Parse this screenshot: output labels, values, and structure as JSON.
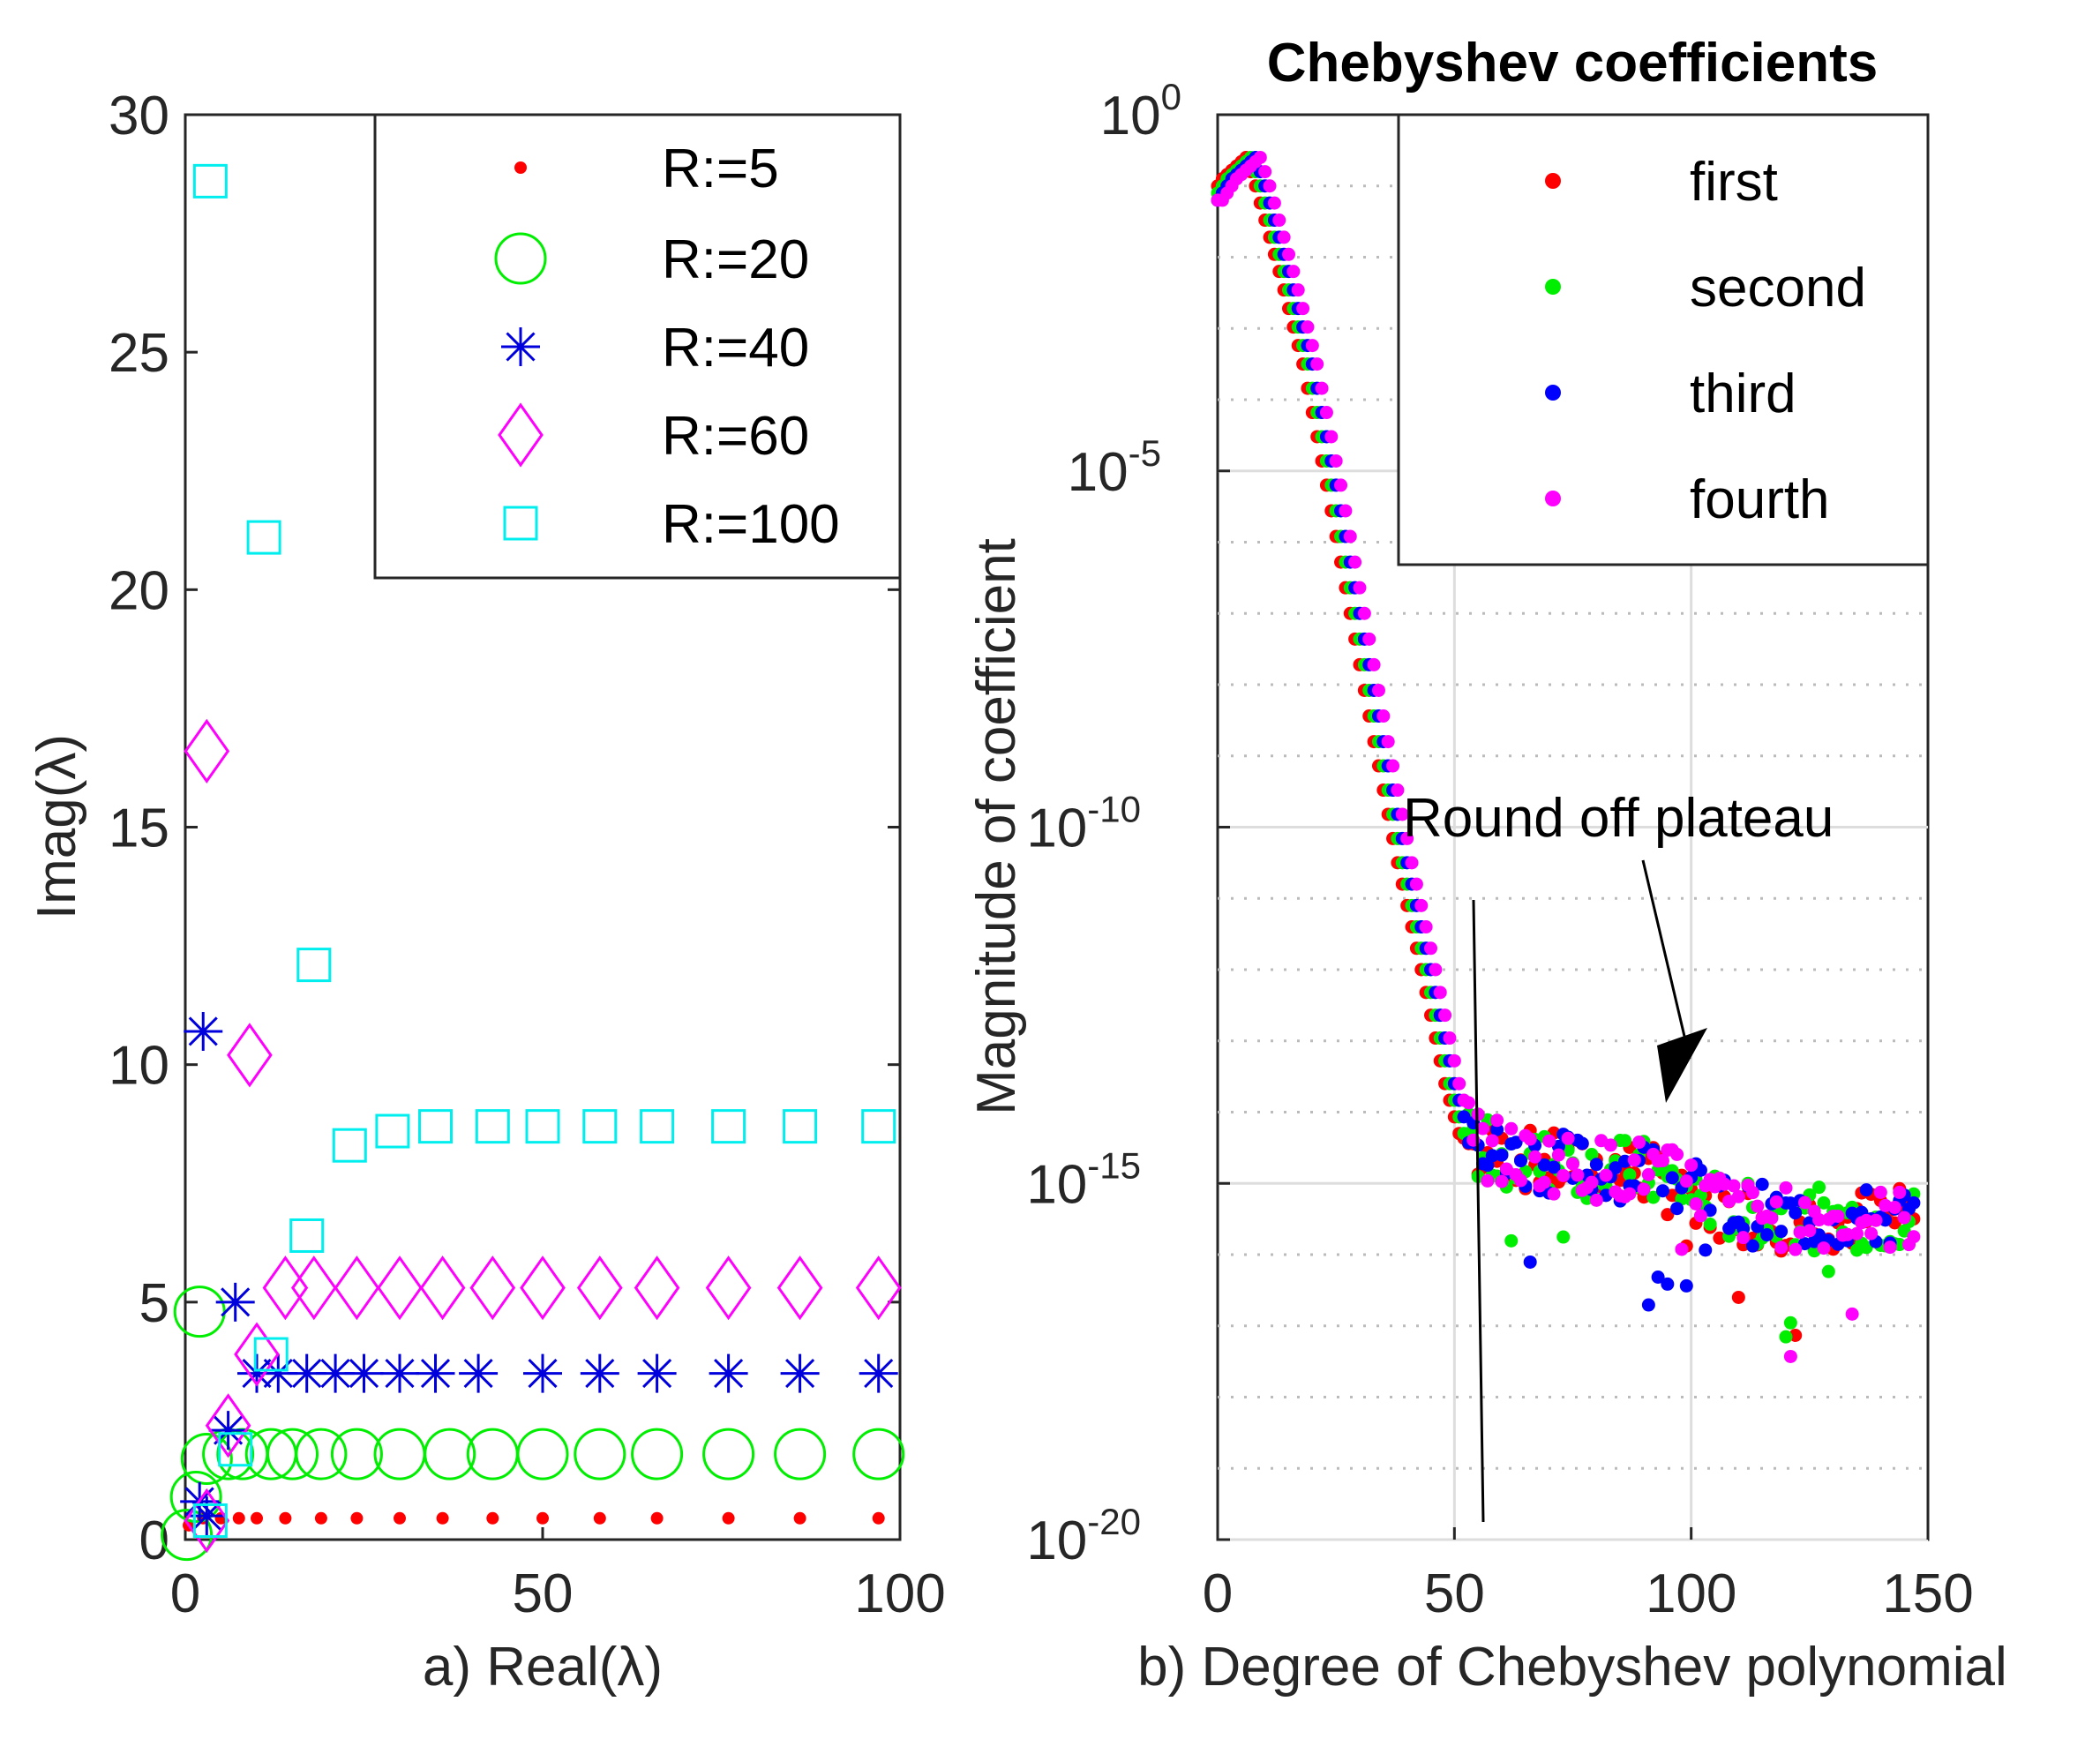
{
  "chart_data": [
    {
      "type": "scatter",
      "title": "",
      "xlabel": "a) Real(λ)",
      "ylabel": "Imag(λ)",
      "xlim": [
        0,
        100
      ],
      "ylim": [
        0,
        30
      ],
      "xticks": [
        "0",
        "50",
        "100"
      ],
      "yticks": [
        "0",
        "5",
        "10",
        "15",
        "20",
        "25",
        "30"
      ],
      "legend_position": "top-right",
      "series": [
        {
          "name": "R:=5",
          "color": "#ff0000",
          "marker": "dot",
          "x": [
            0.5,
            2.5,
            5,
            7.5,
            10,
            14,
            19,
            24,
            30,
            36,
            43,
            50,
            58,
            66,
            76,
            86,
            97
          ],
          "y": [
            0.3,
            0.45,
            0.45,
            0.45,
            0.45,
            0.45,
            0.45,
            0.45,
            0.45,
            0.45,
            0.45,
            0.45,
            0.45,
            0.45,
            0.45,
            0.45,
            0.45
          ]
        },
        {
          "name": "R:=20",
          "color": "#00ee00",
          "marker": "circle",
          "x": [
            0.2,
            1.5,
            2,
            3,
            6,
            8,
            12,
            15,
            19,
            24,
            30,
            37,
            43,
            50,
            58,
            66,
            76,
            86,
            97
          ],
          "y": [
            0.1,
            0.9,
            4.8,
            1.7,
            1.8,
            1.8,
            1.8,
            1.8,
            1.8,
            1.8,
            1.8,
            1.8,
            1.8,
            1.8,
            1.8,
            1.8,
            1.8,
            1.8,
            1.8
          ]
        },
        {
          "name": "R:=40",
          "color": "#0000dd",
          "marker": "asterisk",
          "x": [
            2,
            2.5,
            3,
            6,
            7,
            10,
            13,
            17,
            21,
            25,
            30,
            35,
            41,
            50,
            58,
            66,
            76,
            86,
            97
          ],
          "y": [
            0.8,
            10.7,
            0.5,
            2.3,
            5,
            3.5,
            3.5,
            3.5,
            3.5,
            3.5,
            3.5,
            3.5,
            3.5,
            3.5,
            3.5,
            3.5,
            3.5,
            3.5,
            3.5
          ]
        },
        {
          "name": "R:=60",
          "color": "#ff00ff",
          "marker": "diamond",
          "x": [
            3,
            3,
            6,
            9,
            10,
            14,
            18,
            24,
            30,
            36,
            43,
            50,
            58,
            66,
            76,
            86,
            97
          ],
          "y": [
            0.4,
            16.6,
            2.4,
            10.2,
            3.9,
            5.3,
            5.3,
            5.3,
            5.3,
            5.3,
            5.3,
            5.3,
            5.3,
            5.3,
            5.3,
            5.3,
            5.3
          ]
        },
        {
          "name": "R:=100",
          "color": "#00eeee",
          "marker": "square",
          "x": [
            3.5,
            3.5,
            7,
            11,
            12,
            17,
            18,
            23,
            29,
            35,
            43,
            50,
            58,
            66,
            76,
            86,
            97
          ],
          "y": [
            0.4,
            28.6,
            1.9,
            21.1,
            3.9,
            6.4,
            12.1,
            8.3,
            8.6,
            8.7,
            8.7,
            8.7,
            8.7,
            8.7,
            8.7,
            8.7,
            8.7
          ]
        }
      ]
    },
    {
      "type": "scatter",
      "title": "Chebyshev coefficients",
      "xlabel": "b) Degree of Chebyshev polynomial",
      "ylabel": "Magnitude of coefficient",
      "xlim": [
        0,
        150
      ],
      "yscale": "log",
      "ylim_log10": [
        -20,
        0
      ],
      "xticks": [
        "0",
        "50",
        "100",
        "150"
      ],
      "yticks": [
        {
          "base": "10",
          "exp": "-20"
        },
        {
          "base": "10",
          "exp": "-15"
        },
        {
          "base": "10",
          "exp": "-10"
        },
        {
          "base": "10",
          "exp": "-5"
        },
        {
          "base": "10",
          "exp": "0"
        }
      ],
      "grid": true,
      "legend_position": "top-right",
      "annotation": {
        "text": "Round off plateau",
        "points_to_x": 100,
        "points_to_log10y": -13.5
      },
      "series": [
        {
          "name": "first",
          "color": "#ff0000",
          "offset": -2
        },
        {
          "name": "second",
          "color": "#00ee00",
          "offset": -1
        },
        {
          "name": "third",
          "color": "#0000ff",
          "offset": 0
        },
        {
          "name": "fourth",
          "color": "#ff00ff",
          "offset": 1
        }
      ],
      "curve_profile_log10": {
        "degree": [
          0,
          3,
          8,
          10,
          15,
          20,
          25,
          30,
          35,
          40,
          45,
          50,
          53,
          56,
          60,
          70,
          80,
          90,
          100,
          110,
          120,
          130,
          140,
          148
        ],
        "log10_mag": [
          -1.2,
          -0.9,
          -0.6,
          -1.0,
          -2.2,
          -3.5,
          -5.2,
          -7.0,
          -8.8,
          -10.5,
          -12.0,
          -13.6,
          -14.3,
          -14.5,
          -14.6,
          -14.7,
          -14.8,
          -14.8,
          -15.1,
          -15.4,
          -15.5,
          -15.5,
          -15.5,
          -15.5
        ]
      }
    }
  ]
}
